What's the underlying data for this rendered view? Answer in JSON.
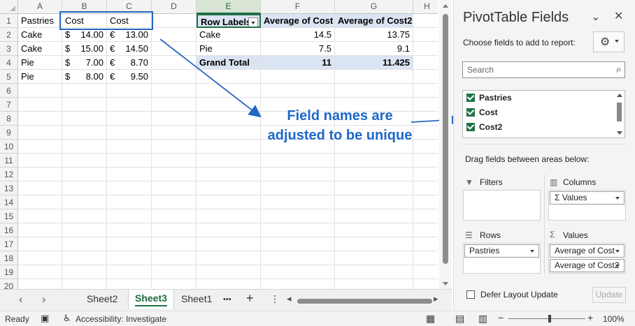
{
  "grid": {
    "columns": [
      "A",
      "B",
      "C",
      "D",
      "E",
      "F",
      "G",
      "H"
    ],
    "rows": [
      "1",
      "2",
      "3",
      "4",
      "5",
      "6",
      "7",
      "8",
      "9",
      "10",
      "11",
      "12",
      "13",
      "14",
      "15",
      "16",
      "17",
      "18",
      "19",
      "20"
    ],
    "data_table": {
      "headers": [
        "Pastries",
        "Cost",
        "Cost"
      ],
      "rows": [
        {
          "pastry": "Cake",
          "cost_sym": "$",
          "cost": "14.00",
          "cost2_sym": "€",
          "cost2": "13.00"
        },
        {
          "pastry": "Cake",
          "cost_sym": "$",
          "cost": "15.00",
          "cost2_sym": "€",
          "cost2": "14.50"
        },
        {
          "pastry": "Pie",
          "cost_sym": "$",
          "cost": "7.00",
          "cost2_sym": "€",
          "cost2": "8.70"
        },
        {
          "pastry": "Pie",
          "cost_sym": "$",
          "cost": "8.00",
          "cost2_sym": "€",
          "cost2": "9.50"
        }
      ]
    },
    "pivot_table": {
      "headers": [
        "Row Labels",
        "Average of Cost",
        "Average of Cost2"
      ],
      "rows": [
        {
          "label": "Cake",
          "avg_cost": "14.5",
          "avg_cost2": "13.75"
        },
        {
          "label": "Pie",
          "avg_cost": "7.5",
          "avg_cost2": "9.1"
        }
      ],
      "total": {
        "label": "Grand Total",
        "avg_cost": "11",
        "avg_cost2": "11.425"
      }
    }
  },
  "annotation": {
    "line1": "Field names are",
    "line2": "adjusted to be unique",
    "color": "#1d68c9"
  },
  "sheet_tabs": [
    "Sheet2",
    "Sheet3",
    "Sheet1"
  ],
  "active_tab": "Sheet3",
  "tab_more": "•••",
  "tab_add": "+",
  "tab_menu": "⋮",
  "status": {
    "ready": "Ready",
    "accessibility": "Accessibility: Investigate",
    "zoom": "100%"
  },
  "pane": {
    "title": "PivotTable Fields",
    "subtitle": "Choose fields to add to report:",
    "search_placeholder": "Search",
    "fields": [
      "Pastries",
      "Cost",
      "Cost2"
    ],
    "drag_label": "Drag fields between areas below:",
    "areas": {
      "filters": "Filters",
      "columns": "Columns",
      "rows": "Rows",
      "values": "Values"
    },
    "columns_chip": "Σ Values",
    "rows_chip": "Pastries",
    "values_chips": [
      "Average of Cost",
      "Average of Cost2"
    ],
    "defer_label": "Defer Layout Update",
    "update_label": "Update"
  },
  "icons": [
    "gear-icon",
    "search-icon",
    "close-icon",
    "chevron-down-icon",
    "filter-icon",
    "columns-icon",
    "rows-icon",
    "sigma-icon",
    "accessibility-icon",
    "normal-view-icon",
    "page-layout-icon",
    "page-break-icon"
  ],
  "accent_color": "#1e7145"
}
